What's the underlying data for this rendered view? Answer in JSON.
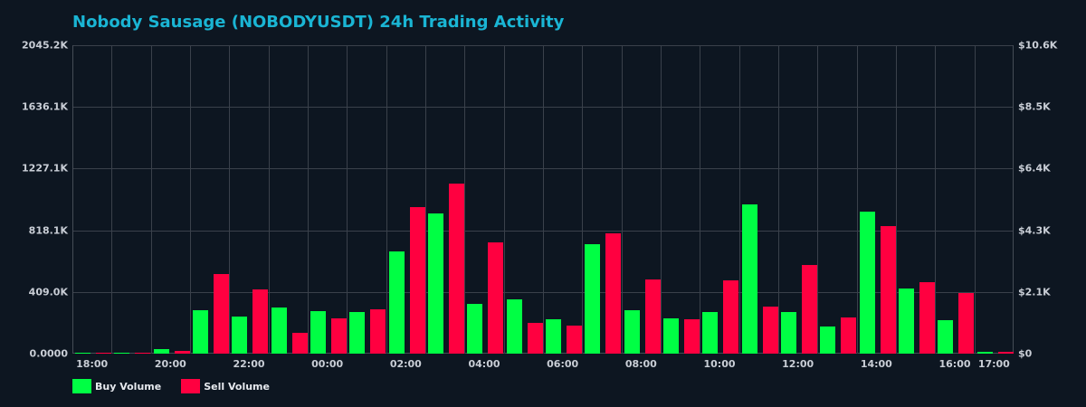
{
  "title": "Nobody Sausage (NOBODYUSDT) 24h Trading Activity",
  "colors": {
    "background": "#0d1621",
    "title": "#1ab5d4",
    "buy": "#00ff44",
    "sell": "#ff0040",
    "grid": "#3a414b",
    "tick_text": "#c9ced6"
  },
  "legend": {
    "buy_label": "Buy Volume",
    "sell_label": "Sell Volume"
  },
  "axes": {
    "left_ticks": [
      "0.0000",
      "409.0K",
      "818.1K",
      "1227.1K",
      "1636.1K",
      "2045.2K"
    ],
    "right_ticks": [
      "$0",
      "$2.1K",
      "$4.3K",
      "$6.4K",
      "$8.5K",
      "$10.6K"
    ],
    "x_ticks": [
      {
        "label": "18:00",
        "slot": 0
      },
      {
        "label": "20:00",
        "slot": 2
      },
      {
        "label": "22:00",
        "slot": 4
      },
      {
        "label": "00:00",
        "slot": 6
      },
      {
        "label": "02:00",
        "slot": 8
      },
      {
        "label": "04:00",
        "slot": 10
      },
      {
        "label": "06:00",
        "slot": 12
      },
      {
        "label": "08:00",
        "slot": 14
      },
      {
        "label": "10:00",
        "slot": 16
      },
      {
        "label": "12:00",
        "slot": 18
      },
      {
        "label": "14:00",
        "slot": 20
      },
      {
        "label": "16:00",
        "slot": 22
      },
      {
        "label": "17:00",
        "slot": 23
      }
    ]
  },
  "chart_data": {
    "type": "bar",
    "title": "Nobody Sausage (NOBODYUSDT) 24h Trading Activity",
    "xlabel": "",
    "ylabel": "",
    "ylim": [
      0,
      2045.2
    ],
    "y_unit": "K",
    "y2lim_label": [
      "$0",
      "$10.6K"
    ],
    "grid": true,
    "legend_position": "bottom-left",
    "categories": [
      "18:00",
      "19:00",
      "20:00",
      "21:00",
      "22:00",
      "23:00",
      "00:00",
      "01:00",
      "02:00",
      "03:00",
      "04:00",
      "05:00",
      "06:00",
      "07:00",
      "08:00",
      "09:00",
      "10:00",
      "11:00",
      "12:00",
      "13:00",
      "14:00",
      "15:00",
      "16:00",
      "17:00"
    ],
    "series": [
      {
        "name": "Buy Volume",
        "color": "#00ff44",
        "values": [
          5,
          5,
          32,
          288,
          246,
          306,
          282,
          276,
          678,
          930,
          330,
          360,
          228,
          726,
          288,
          234,
          276,
          990,
          276,
          180,
          942,
          432,
          222,
          12
        ]
      },
      {
        "name": "Sell Volume",
        "color": "#ff0040",
        "values": [
          5,
          5,
          18,
          528,
          426,
          138,
          234,
          294,
          972,
          1128,
          738,
          204,
          186,
          798,
          492,
          228,
          486,
          312,
          588,
          240,
          846,
          474,
          402,
          12
        ]
      }
    ]
  }
}
